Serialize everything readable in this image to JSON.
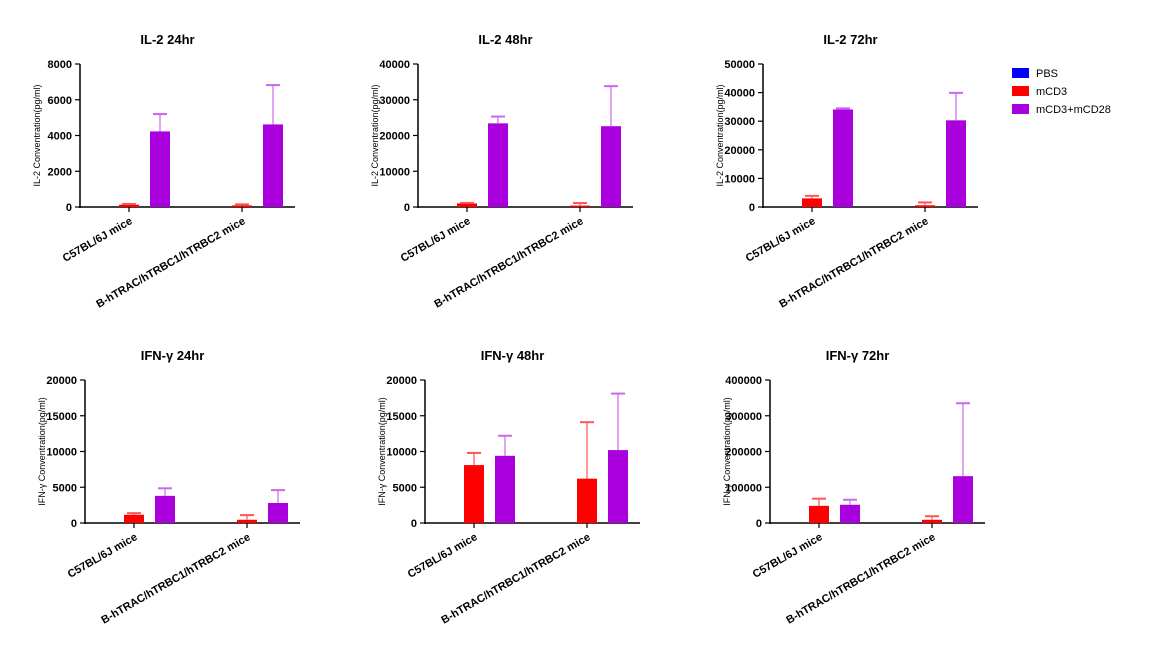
{
  "chart_data": {
    "type": "bar",
    "categories": [
      "C57BL/6J mice",
      "B-hTRAC/hTRBC1/hTRBC2 mice"
    ],
    "legend": {
      "placement": "top-right",
      "entries": [
        {
          "name": "PBS",
          "color": "#0000ff"
        },
        {
          "name": "mCD3",
          "color": "#ff0000"
        },
        {
          "name": "mCD3+mCD28",
          "color": "#aa00dd"
        }
      ]
    },
    "panels": [
      {
        "title": "IL-2 24hr",
        "ylabel": "IL-2 Conventration(pg/ml)",
        "ylim": [
          0,
          8000
        ],
        "yticks": [
          0,
          2000,
          4000,
          6000,
          8000
        ],
        "series": [
          {
            "name": "PBS",
            "values": [
              0,
              0
            ],
            "error_upper": [
              0,
              0
            ]
          },
          {
            "name": "mCD3",
            "values": [
              130,
              90
            ],
            "error_upper": [
              170,
              150
            ]
          },
          {
            "name": "mCD3+mCD28",
            "values": [
              4230,
              4620
            ],
            "error_upper": [
              5200,
              6820
            ]
          }
        ]
      },
      {
        "title": "IL-2 48hr",
        "ylabel": "IL-2 Conventration(pg/ml)",
        "ylim": [
          0,
          40000
        ],
        "yticks": [
          0,
          10000,
          20000,
          30000,
          40000
        ],
        "series": [
          {
            "name": "PBS",
            "values": [
              0,
              0
            ],
            "error_upper": [
              0,
              0
            ]
          },
          {
            "name": "mCD3",
            "values": [
              1000,
              400
            ],
            "error_upper": [
              1150,
              1100
            ]
          },
          {
            "name": "mCD3+mCD28",
            "values": [
              23400,
              22600
            ],
            "error_upper": [
              25300,
              33800
            ]
          }
        ]
      },
      {
        "title": "IL-2 72hr",
        "ylabel": "IL-2 Conventration(pg/ml)",
        "ylim": [
          0,
          50000
        ],
        "yticks": [
          0,
          10000,
          20000,
          30000,
          40000,
          50000
        ],
        "series": [
          {
            "name": "PBS",
            "values": [
              0,
              0
            ],
            "error_upper": [
              0,
              0
            ]
          },
          {
            "name": "mCD3",
            "values": [
              3000,
              600
            ],
            "error_upper": [
              3900,
              1600
            ]
          },
          {
            "name": "mCD3+mCD28",
            "values": [
              34100,
              30300
            ],
            "error_upper": [
              34500,
              39900
            ]
          }
        ]
      },
      {
        "title": "IFN-γ 24hr",
        "ylabel": "IFN-γ Conventration(pg/ml)",
        "ylim": [
          0,
          20000
        ],
        "yticks": [
          0,
          5000,
          10000,
          15000,
          20000
        ],
        "series": [
          {
            "name": "PBS",
            "values": [
              0,
              0
            ],
            "error_upper": [
              0,
              0
            ]
          },
          {
            "name": "mCD3",
            "values": [
              1150,
              450
            ],
            "error_upper": [
              1380,
              1100
            ]
          },
          {
            "name": "mCD3+mCD28",
            "values": [
              3800,
              2800
            ],
            "error_upper": [
              4850,
              4600
            ]
          }
        ]
      },
      {
        "title": "IFN-γ 48hr",
        "ylabel": "IFN-γ Conventration(pg/ml)",
        "ylim": [
          0,
          20000
        ],
        "yticks": [
          0,
          5000,
          10000,
          15000,
          20000
        ],
        "series": [
          {
            "name": "PBS",
            "values": [
              0,
              0
            ],
            "error_upper": [
              0,
              0
            ]
          },
          {
            "name": "mCD3",
            "values": [
              8100,
              6200
            ],
            "error_upper": [
              9800,
              14100
            ]
          },
          {
            "name": "mCD3+mCD28",
            "values": [
              9400,
              10200
            ],
            "error_upper": [
              12200,
              18100
            ]
          }
        ]
      },
      {
        "title": "IFN-γ 72hr",
        "ylabel": "IFN-γ Conventration(pg/ml)",
        "ylim": [
          0,
          400000
        ],
        "yticks": [
          0,
          100000,
          200000,
          300000,
          400000
        ],
        "series": [
          {
            "name": "PBS",
            "values": [
              0,
              0
            ],
            "error_upper": [
              0,
              0
            ]
          },
          {
            "name": "mCD3",
            "values": [
              48000,
              9000
            ],
            "error_upper": [
              68000,
              19000
            ]
          },
          {
            "name": "mCD3+mCD28",
            "values": [
              51000,
              131000
            ],
            "error_upper": [
              65000,
              335000
            ]
          }
        ]
      }
    ]
  }
}
